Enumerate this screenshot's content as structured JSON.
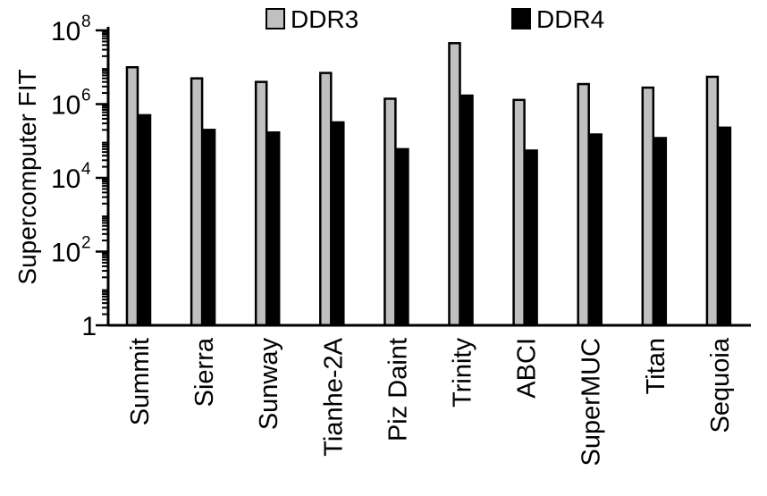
{
  "chart_data": {
    "type": "bar",
    "title": "",
    "xlabel": "",
    "ylabel": "Supercomputer FIT",
    "yscale": "log10",
    "ylim": [
      1,
      100000000
    ],
    "yticks": [
      {
        "value": 1,
        "base": "1",
        "exp": ""
      },
      {
        "value": 100,
        "base": "10",
        "exp": "2"
      },
      {
        "value": 10000,
        "base": "10",
        "exp": "4"
      },
      {
        "value": 1000000,
        "base": "10",
        "exp": "6"
      },
      {
        "value": 100000000,
        "base": "10",
        "exp": "8"
      }
    ],
    "grid": false,
    "legend_position": "top",
    "categories": [
      "Summit",
      "Sierra",
      "Sunway",
      "Tianhe-2A",
      "Piz Daint",
      "Trinity",
      "ABCI",
      "SuperMUC",
      "Titan",
      "Sequoia"
    ],
    "series": [
      {
        "name": "DDR3",
        "color": "#c0c0c0",
        "values": [
          10000000,
          5000000,
          4000000,
          7000000,
          1400000,
          45000000,
          1300000,
          3500000,
          2800000,
          5500000
        ]
      },
      {
        "name": "DDR4",
        "color": "#000000",
        "values": [
          500000,
          200000,
          170000,
          320000,
          60000,
          1700000,
          55000,
          150000,
          120000,
          230000
        ]
      }
    ]
  }
}
